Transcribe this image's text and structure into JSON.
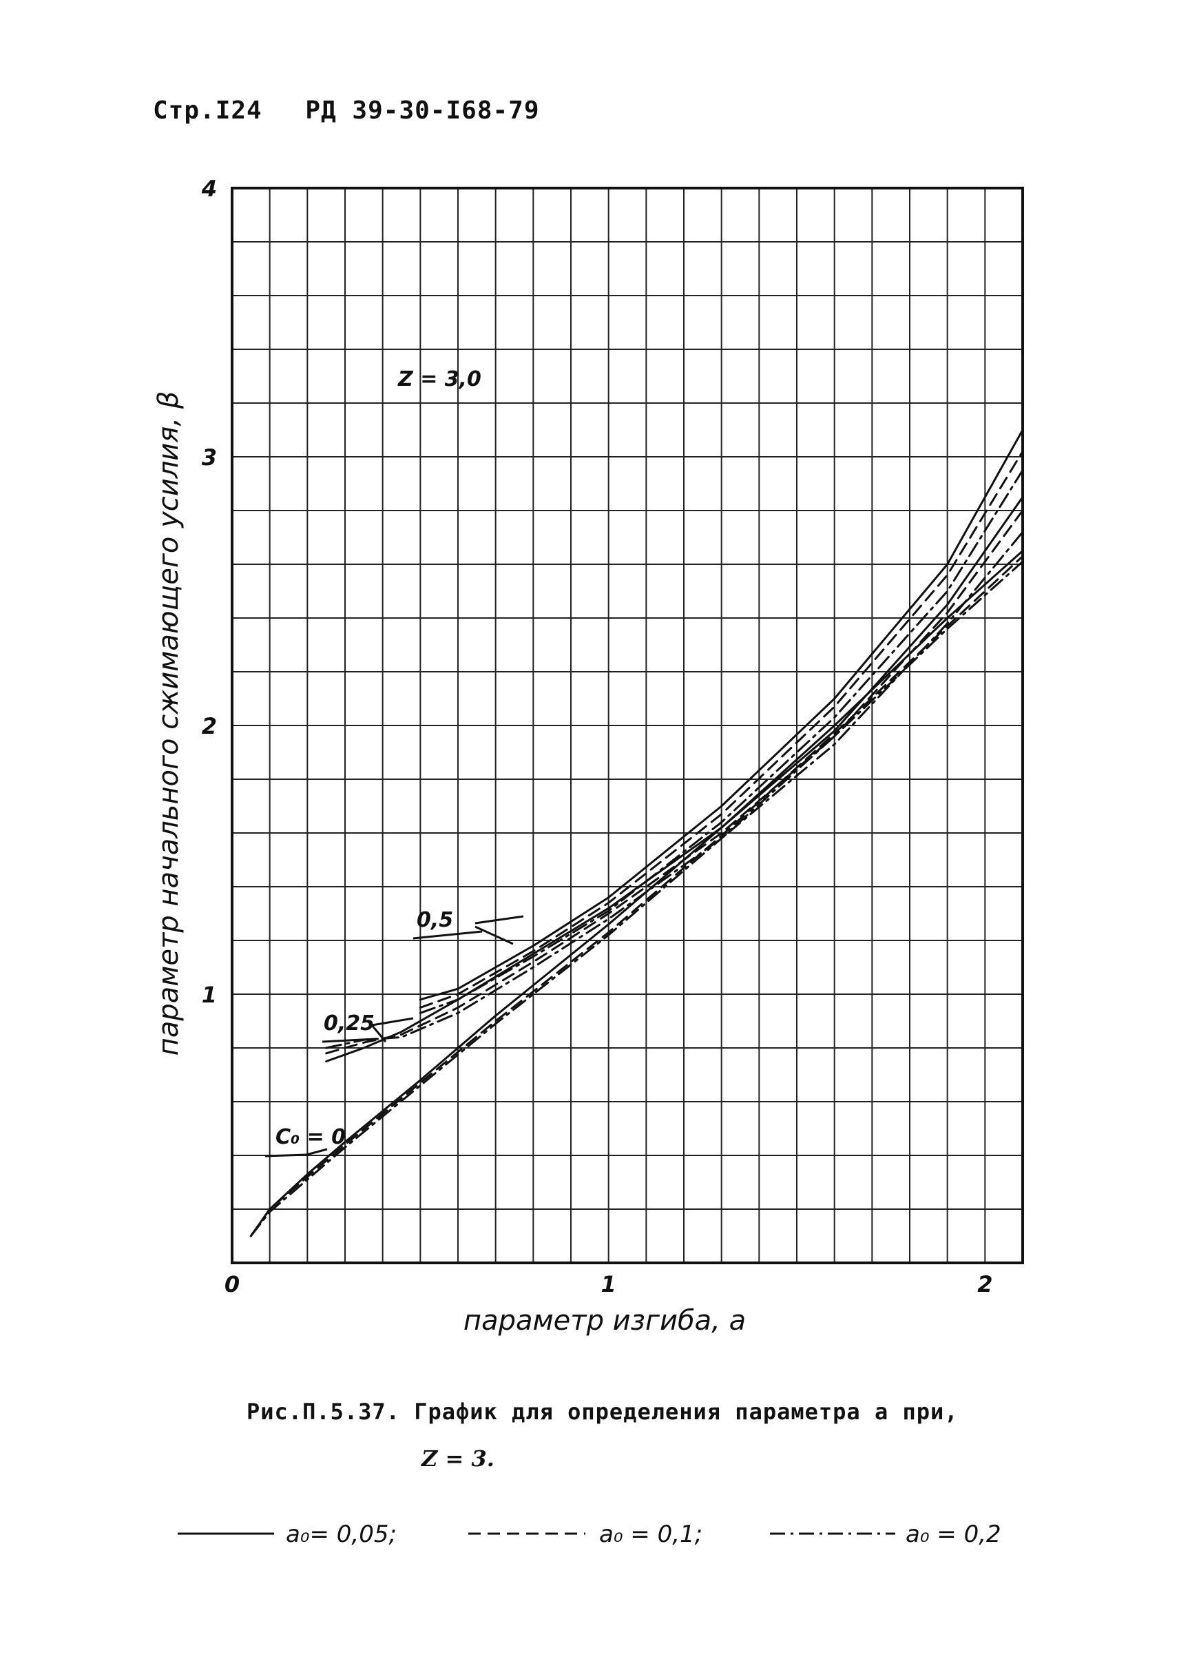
{
  "header": {
    "page": "Стр.I24",
    "doc": "РД 39-30-I68-79"
  },
  "caption": {
    "line1": "Рис.П.5.37. График для определения параметра  a  при,",
    "line2": "Z = 3."
  },
  "legend": [
    {
      "label": "a₀= 0,05;",
      "style": "solid"
    },
    {
      "label": "a₀ = 0,1;",
      "style": "dashed"
    },
    {
      "label": "a₀ = 0,2",
      "style": "dashdot"
    }
  ],
  "chart_data": {
    "type": "line",
    "xlabel": "параметр изгиба,  a",
    "ylabel": "параметр начального сжимающего усилия,  β",
    "xlim": [
      0,
      2.1
    ],
    "ylim": [
      0,
      4
    ],
    "xticks": [
      "0",
      "1",
      "2"
    ],
    "yticks": [
      "1",
      "2",
      "3",
      "4"
    ],
    "grid": true,
    "annotations": [
      "Z = 3,0",
      "0,5",
      "0,25",
      "C₀ = 0"
    ],
    "series_groups": [
      {
        "group": "C₀ = 0",
        "x": [
          0.05,
          0.1,
          0.2,
          0.3,
          0.5,
          0.7,
          1.0,
          1.3,
          1.6,
          1.9,
          2.1
        ],
        "series": [
          {
            "style": "solid",
            "values": [
              0.1,
              0.2,
              0.33,
              0.45,
              0.68,
              0.92,
              1.26,
              1.62,
              2.0,
              2.4,
              2.65
            ]
          },
          {
            "style": "dashed",
            "values": [
              0.1,
              0.2,
              0.32,
              0.44,
              0.67,
              0.9,
              1.23,
              1.59,
              1.97,
              2.37,
              2.63
            ]
          },
          {
            "style": "dashdot",
            "values": [
              0.1,
              0.19,
              0.31,
              0.43,
              0.66,
              0.89,
              1.22,
              1.58,
              1.96,
              2.36,
              2.61
            ]
          }
        ]
      },
      {
        "group": "C₀ = 0,25",
        "x": [
          0.25,
          0.35,
          0.45,
          0.6,
          0.8,
          1.0,
          1.3,
          1.6,
          1.9,
          2.1
        ],
        "series": [
          {
            "style": "solid",
            "values": [
              0.75,
              0.8,
              0.86,
              0.98,
              1.15,
              1.32,
              1.62,
              1.98,
              2.45,
              2.85
            ]
          },
          {
            "style": "dashed",
            "values": [
              0.78,
              0.82,
              0.85,
              0.95,
              1.12,
              1.3,
              1.6,
              1.96,
              2.42,
              2.8
            ]
          },
          {
            "style": "dashdot",
            "values": [
              0.8,
              0.83,
              0.84,
              0.93,
              1.1,
              1.28,
              1.58,
              1.93,
              2.38,
              2.72
            ]
          }
        ]
      },
      {
        "group": "C₀ = 0,5",
        "x": [
          0.5,
          0.6,
          0.8,
          1.0,
          1.3,
          1.6,
          1.9,
          2.1
        ],
        "series": [
          {
            "style": "solid",
            "values": [
              0.98,
              1.02,
              1.18,
              1.36,
              1.7,
              2.1,
              2.6,
              3.1
            ]
          },
          {
            "style": "dashed",
            "values": [
              0.95,
              1.0,
              1.16,
              1.34,
              1.67,
              2.07,
              2.56,
              3.02
            ]
          },
          {
            "style": "dashdot",
            "values": [
              0.93,
              0.98,
              1.14,
              1.31,
              1.64,
              2.03,
              2.5,
              2.95
            ]
          }
        ]
      }
    ]
  }
}
